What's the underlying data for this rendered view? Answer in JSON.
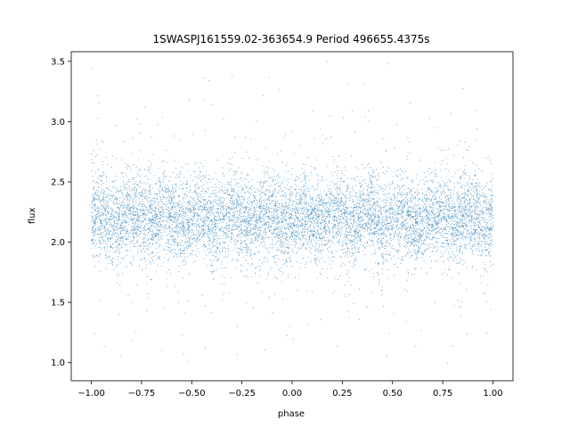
{
  "chart_data": {
    "type": "scatter",
    "title": "1SWASPJ161559.02-363654.9 Period 496655.4375s",
    "xlabel": "phase",
    "ylabel": "flux",
    "xlim": [
      -1.1,
      1.1
    ],
    "ylim": [
      0.85,
      3.58
    ],
    "xticks": [
      -1.0,
      -0.75,
      -0.5,
      -0.25,
      0.0,
      0.25,
      0.5,
      0.75,
      1.0
    ],
    "xtick_labels": [
      "−1.00",
      "−0.75",
      "−0.50",
      "−0.25",
      "0.00",
      "0.25",
      "0.50",
      "0.75",
      "1.00"
    ],
    "yticks": [
      1.0,
      1.5,
      2.0,
      2.5,
      3.0,
      3.5
    ],
    "ytick_labels": [
      "1.0",
      "1.5",
      "2.0",
      "2.5",
      "3.0",
      "3.5"
    ],
    "grid": false,
    "point_color": "#1f77b4",
    "series": [
      {
        "description_of_distribution": "dense band of points across phase -1 to 1",
        "phase_range": [
          -1.0,
          1.0
        ],
        "flux_median": 2.2,
        "flux_core_range": [
          1.9,
          2.6
        ],
        "flux_full_range": [
          0.95,
          3.5
        ],
        "n_points_approx": 9000
      }
    ]
  }
}
